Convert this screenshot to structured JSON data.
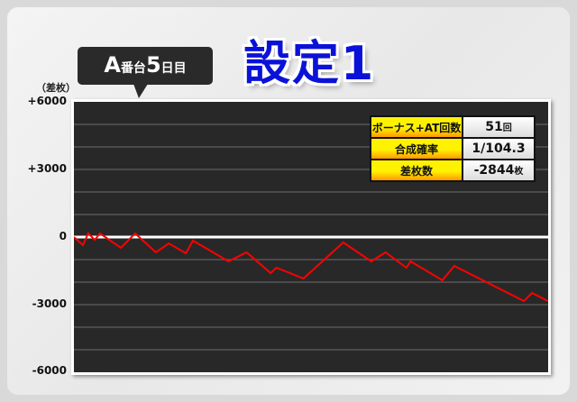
{
  "header": {
    "machine_label": "A",
    "machine_suffix": "番台",
    "day": "5",
    "day_suffix": "日目",
    "title": "設定1"
  },
  "stats": [
    {
      "label": "ボーナス+AT回数",
      "value": "51",
      "unit": "回"
    },
    {
      "label": "合成確率",
      "value": "1/104.3",
      "unit": ""
    },
    {
      "label": "差枚数",
      "value": "-2844",
      "unit": "枚"
    }
  ],
  "chart_data": {
    "type": "line",
    "ylabel": "（差枚）",
    "ylim": [
      -6000,
      6000
    ],
    "yticks": [
      "+6000",
      "+3000",
      "0",
      "-3000",
      "-6000"
    ],
    "ytick_values": [
      6000,
      3000,
      0,
      -3000,
      -6000
    ],
    "grid": true,
    "grid_step": 1000,
    "x_unit": "percent of session (unlabeled)",
    "series": [
      {
        "color": "#ff0000",
        "points": [
          [
            0,
            0
          ],
          [
            1.9,
            -360
          ],
          [
            3.0,
            160
          ],
          [
            4.4,
            -120
          ],
          [
            5.5,
            160
          ],
          [
            9.9,
            -480
          ],
          [
            12.9,
            160
          ],
          [
            17.3,
            -680
          ],
          [
            20.0,
            -280
          ],
          [
            23.6,
            -720
          ],
          [
            25.1,
            -160
          ],
          [
            32.6,
            -1080
          ],
          [
            36.4,
            -680
          ],
          [
            41.5,
            -1600
          ],
          [
            42.7,
            -1360
          ],
          [
            48.4,
            -1840
          ],
          [
            56.8,
            -240
          ],
          [
            62.7,
            -1080
          ],
          [
            65.7,
            -680
          ],
          [
            70.1,
            -1360
          ],
          [
            71.0,
            -1080
          ],
          [
            77.7,
            -1920
          ],
          [
            80.2,
            -1280
          ],
          [
            94.9,
            -2840
          ],
          [
            96.6,
            -2480
          ],
          [
            100,
            -2844
          ]
        ]
      }
    ]
  }
}
